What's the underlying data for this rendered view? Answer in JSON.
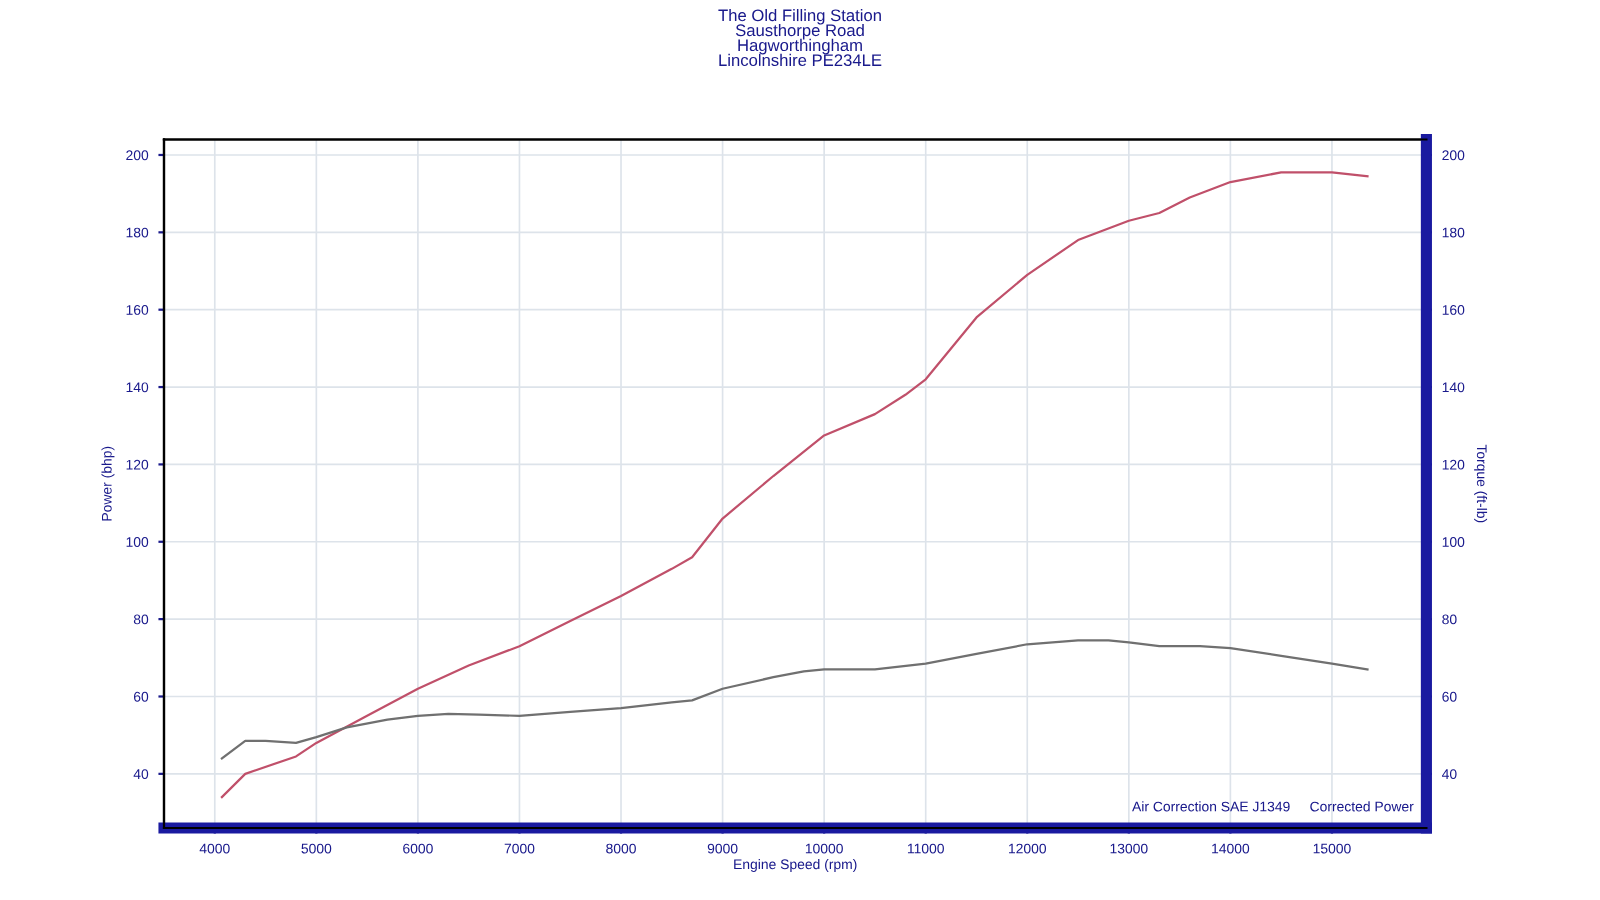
{
  "chart_data": {
    "type": "line",
    "xlabel": "Engine Speed (rpm)",
    "ylabel": "Power (bhp)",
    "y2label": "Torque (ft-lb)",
    "annotations": [
      "The Old Filling Station\nSausthorpe Road\nHagworthingham\nLincolnshire PE234LE",
      "Air Correction SAE J1349",
      "Corrected Power"
    ],
    "xlim": [
      3500,
      15930
    ],
    "xticks": [
      4000,
      5000,
      6000,
      7000,
      8000,
      9000,
      10000,
      11000,
      12000,
      13000,
      14000,
      15000
    ],
    "ylim": [
      26,
      204
    ],
    "yticks": [
      40,
      60,
      80,
      100,
      120,
      140,
      160,
      180,
      200
    ],
    "y2lim": [
      26,
      204
    ],
    "y2ticks": [
      40,
      60,
      80,
      100,
      120,
      140,
      160,
      180,
      200
    ],
    "grid": true,
    "legend": false,
    "series": [
      {
        "color": "#c0506a",
        "x": [
          4070,
          4300,
          4800,
          5000,
          5500,
          6000,
          6500,
          7000,
          7500,
          8000,
          8500,
          8700,
          9000,
          9500,
          10000,
          10500,
          10800,
          11000,
          11500,
          12000,
          12500,
          13000,
          13300,
          13600,
          14000,
          14500,
          15000,
          15350
        ],
        "values": [
          34,
          40,
          44.5,
          48,
          55,
          62,
          68,
          73,
          79.5,
          86,
          93,
          96,
          106,
          117,
          127.5,
          133,
          138,
          142,
          158,
          169,
          178,
          183,
          185,
          189,
          193,
          195.5,
          195.5,
          194.5
        ]
      },
      {
        "color": "#707070",
        "x": [
          4070,
          4300,
          4500,
          4800,
          5000,
          5300,
          5700,
          6000,
          6300,
          6600,
          7000,
          7500,
          8000,
          8500,
          8700,
          9000,
          9500,
          9800,
          10000,
          10500,
          11000,
          11500,
          12000,
          12500,
          12800,
          13000,
          13300,
          13700,
          14000,
          14500,
          15000,
          15350
        ],
        "values": [
          44,
          48.5,
          48.5,
          48,
          49.5,
          52,
          54,
          55,
          55.5,
          55.3,
          55,
          56,
          57,
          58.5,
          59,
          62,
          65,
          66.5,
          67,
          67,
          68.5,
          71,
          73.5,
          74.5,
          74.5,
          74,
          73,
          73,
          72.5,
          70.5,
          68.5,
          67
        ]
      }
    ]
  }
}
